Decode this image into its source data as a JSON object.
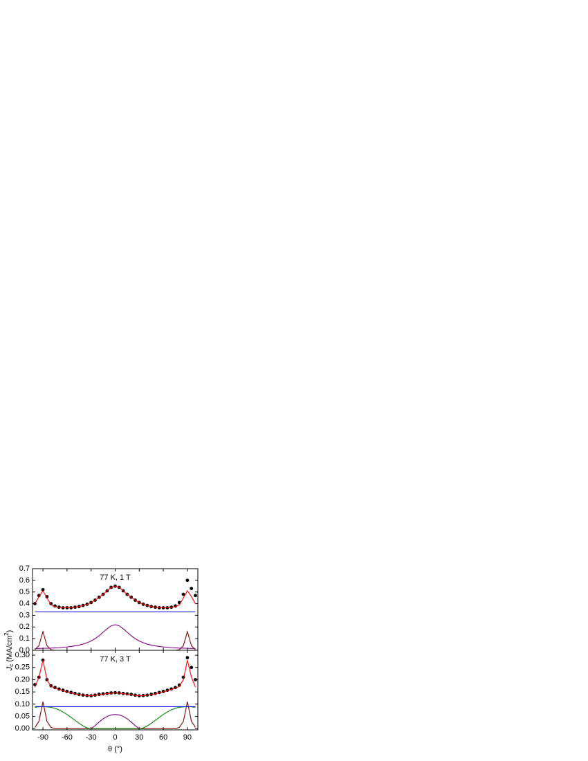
{
  "figure": {
    "ylabel": {
      "main": "J",
      "sub": "c",
      "unit": " (MA/cm",
      "sup": "2",
      "close": ")"
    }
  },
  "chart_data": [
    {
      "type": "line",
      "annotation": "77 K, 1 T",
      "show_x_tick_labels": false,
      "x": [
        -100,
        -95,
        -90,
        -85,
        -80,
        -75,
        -70,
        -65,
        -60,
        -55,
        -50,
        -45,
        -40,
        -35,
        -30,
        -25,
        -20,
        -15,
        -10,
        -5,
        0,
        5,
        10,
        15,
        20,
        25,
        30,
        35,
        40,
        45,
        50,
        55,
        60,
        65,
        70,
        75,
        80,
        85,
        90,
        95,
        100
      ],
      "xlim": [
        -103,
        103
      ],
      "xticks": [
        -90,
        -60,
        -30,
        0,
        30,
        60,
        90
      ],
      "ylim": [
        0,
        0.7
      ],
      "yticks": [
        {
          "value": 0,
          "label": "0.0"
        },
        0.1,
        0.2,
        0.3,
        0.4,
        0.5,
        0.6,
        0.7
      ],
      "series": [
        {
          "color": "#800000",
          "marker": false,
          "values": [
            0.005,
            0.04,
            0.16,
            0.04,
            0.005,
            0,
            0,
            0,
            0,
            0,
            0,
            0,
            0,
            0,
            0,
            0,
            0,
            0,
            0,
            0,
            0,
            0,
            0,
            0,
            0,
            0,
            0,
            0,
            0,
            0,
            0,
            0,
            0,
            0,
            0,
            0,
            0.005,
            0.04,
            0.16,
            0.04,
            0.005
          ]
        },
        {
          "color": "#800080",
          "marker": false,
          "values": [
            0.015,
            0.016,
            0.017,
            0.018,
            0.019,
            0.021,
            0.023,
            0.026,
            0.029,
            0.033,
            0.038,
            0.045,
            0.053,
            0.065,
            0.08,
            0.1,
            0.125,
            0.155,
            0.185,
            0.21,
            0.22,
            0.21,
            0.185,
            0.155,
            0.125,
            0.1,
            0.08,
            0.065,
            0.053,
            0.045,
            0.038,
            0.033,
            0.029,
            0.026,
            0.023,
            0.021,
            0.019,
            0.018,
            0.017,
            0.016,
            0.015
          ]
        },
        {
          "color": "#0000ff",
          "marker": false,
          "values": [
            0.33,
            0.33,
            0.33,
            0.33,
            0.33,
            0.33,
            0.33,
            0.33,
            0.33,
            0.33,
            0.33,
            0.33,
            0.33,
            0.33,
            0.33,
            0.33,
            0.33,
            0.33,
            0.33,
            0.33,
            0.33,
            0.33,
            0.33,
            0.33,
            0.33,
            0.33,
            0.33,
            0.33,
            0.33,
            0.33,
            0.33,
            0.33,
            0.33,
            0.33,
            0.33,
            0.33,
            0.33,
            0.33,
            0.33,
            0.33,
            0.33
          ]
        },
        {
          "color": "#000000",
          "marker": true,
          "values": [
            0.4,
            0.47,
            0.52,
            0.46,
            0.4,
            0.38,
            0.37,
            0.365,
            0.365,
            0.365,
            0.37,
            0.375,
            0.385,
            0.395,
            0.41,
            0.43,
            0.455,
            0.48,
            0.51,
            0.54,
            0.55,
            0.54,
            0.51,
            0.48,
            0.455,
            0.43,
            0.41,
            0.395,
            0.385,
            0.375,
            0.37,
            0.365,
            0.365,
            0.365,
            0.37,
            0.38,
            0.41,
            0.48,
            0.6,
            0.53,
            0.47
          ]
        },
        {
          "color": "#ff0000",
          "marker": false,
          "values": [
            0.4,
            0.46,
            0.51,
            0.45,
            0.39,
            0.375,
            0.368,
            0.365,
            0.365,
            0.365,
            0.37,
            0.375,
            0.385,
            0.395,
            0.41,
            0.43,
            0.455,
            0.48,
            0.51,
            0.54,
            0.55,
            0.54,
            0.51,
            0.48,
            0.455,
            0.43,
            0.41,
            0.395,
            0.385,
            0.375,
            0.37,
            0.365,
            0.365,
            0.365,
            0.368,
            0.375,
            0.39,
            0.45,
            0.51,
            0.46,
            0.4
          ]
        }
      ]
    },
    {
      "type": "line",
      "annotation": "77 K, 3 T",
      "show_x_tick_labels": true,
      "xlabel": "θ (°)",
      "x": [
        -100,
        -95,
        -90,
        -85,
        -80,
        -75,
        -70,
        -65,
        -60,
        -55,
        -50,
        -45,
        -40,
        -35,
        -30,
        -25,
        -20,
        -15,
        -10,
        -5,
        0,
        5,
        10,
        15,
        20,
        25,
        30,
        35,
        40,
        45,
        50,
        55,
        60,
        65,
        70,
        75,
        80,
        85,
        90,
        95,
        100
      ],
      "xlim": [
        -103,
        103
      ],
      "xticks": [
        -90,
        -60,
        -30,
        0,
        30,
        60,
        90
      ],
      "ylim": [
        -0.005,
        0.32
      ],
      "yticks": [
        {
          "value": 0,
          "label": "0.00"
        },
        0.05,
        {
          "value": 0.1,
          "label": "0.10"
        },
        0.15,
        {
          "value": 0.2,
          "label": "0.20"
        },
        0.25,
        {
          "value": 0.3,
          "label": "0.30"
        }
      ],
      "series": [
        {
          "color": "#800000",
          "marker": false,
          "values": [
            0.005,
            0.03,
            0.11,
            0.03,
            0.005,
            0,
            0,
            0,
            0,
            0,
            0,
            0,
            0,
            0,
            0,
            0,
            0,
            0,
            0,
            0,
            0,
            0,
            0,
            0,
            0,
            0,
            0,
            0,
            0,
            0,
            0,
            0,
            0,
            0,
            0,
            0,
            0.005,
            0.03,
            0.11,
            0.03,
            0.005
          ]
        },
        {
          "color": "#008000",
          "marker": false,
          "values": [
            0.087,
            0.089,
            0.09,
            0.089,
            0.087,
            0.083,
            0.077,
            0.068,
            0.058,
            0.046,
            0.034,
            0.022,
            0.011,
            0.003,
            0,
            0,
            0,
            0,
            0,
            0,
            0,
            0,
            0,
            0,
            0,
            0,
            0,
            0.003,
            0.011,
            0.022,
            0.034,
            0.046,
            0.058,
            0.068,
            0.077,
            0.083,
            0.087,
            0.089,
            0.09,
            0.089,
            0.087
          ]
        },
        {
          "color": "#800080",
          "marker": false,
          "values": [
            null,
            null,
            null,
            null,
            null,
            null,
            null,
            null,
            null,
            null,
            null,
            null,
            null,
            null,
            0,
            0.012,
            0.027,
            0.04,
            0.05,
            0.056,
            0.058,
            0.056,
            0.05,
            0.04,
            0.027,
            0.012,
            0,
            null,
            null,
            null,
            null,
            null,
            null,
            null,
            null,
            null,
            null,
            null,
            null,
            null,
            null
          ]
        },
        {
          "color": "#0000ff",
          "marker": false,
          "values": [
            0.09,
            0.09,
            0.09,
            0.09,
            0.09,
            0.09,
            0.09,
            0.09,
            0.09,
            0.09,
            0.09,
            0.09,
            0.09,
            0.09,
            0.09,
            0.09,
            0.09,
            0.09,
            0.09,
            0.09,
            0.09,
            0.09,
            0.09,
            0.09,
            0.09,
            0.09,
            0.09,
            0.09,
            0.09,
            0.09,
            0.09,
            0.09,
            0.09,
            0.09,
            0.09,
            0.09,
            0.09,
            0.09,
            0.09,
            0.09,
            0.09
          ]
        },
        {
          "color": "#000000",
          "marker": true,
          "values": [
            0.18,
            0.21,
            0.28,
            0.2,
            0.175,
            0.168,
            0.162,
            0.157,
            0.152,
            0.148,
            0.144,
            0.14,
            0.137,
            0.135,
            0.134,
            0.137,
            0.14,
            0.142,
            0.144,
            0.146,
            0.147,
            0.146,
            0.144,
            0.142,
            0.14,
            0.137,
            0.134,
            0.135,
            0.137,
            0.14,
            0.144,
            0.148,
            0.152,
            0.157,
            0.162,
            0.168,
            0.178,
            0.21,
            0.29,
            0.25,
            0.2
          ]
        },
        {
          "color": "#ff0000",
          "marker": false,
          "values": [
            0.17,
            0.21,
            0.28,
            0.2,
            0.172,
            0.166,
            0.16,
            0.155,
            0.15,
            0.146,
            0.142,
            0.139,
            0.137,
            0.135,
            0.134,
            0.136,
            0.139,
            0.141,
            0.143,
            0.145,
            0.146,
            0.145,
            0.143,
            0.141,
            0.139,
            0.136,
            0.134,
            0.135,
            0.137,
            0.139,
            0.142,
            0.146,
            0.15,
            0.155,
            0.16,
            0.166,
            0.172,
            0.2,
            0.28,
            0.21,
            0.17
          ]
        }
      ]
    }
  ]
}
